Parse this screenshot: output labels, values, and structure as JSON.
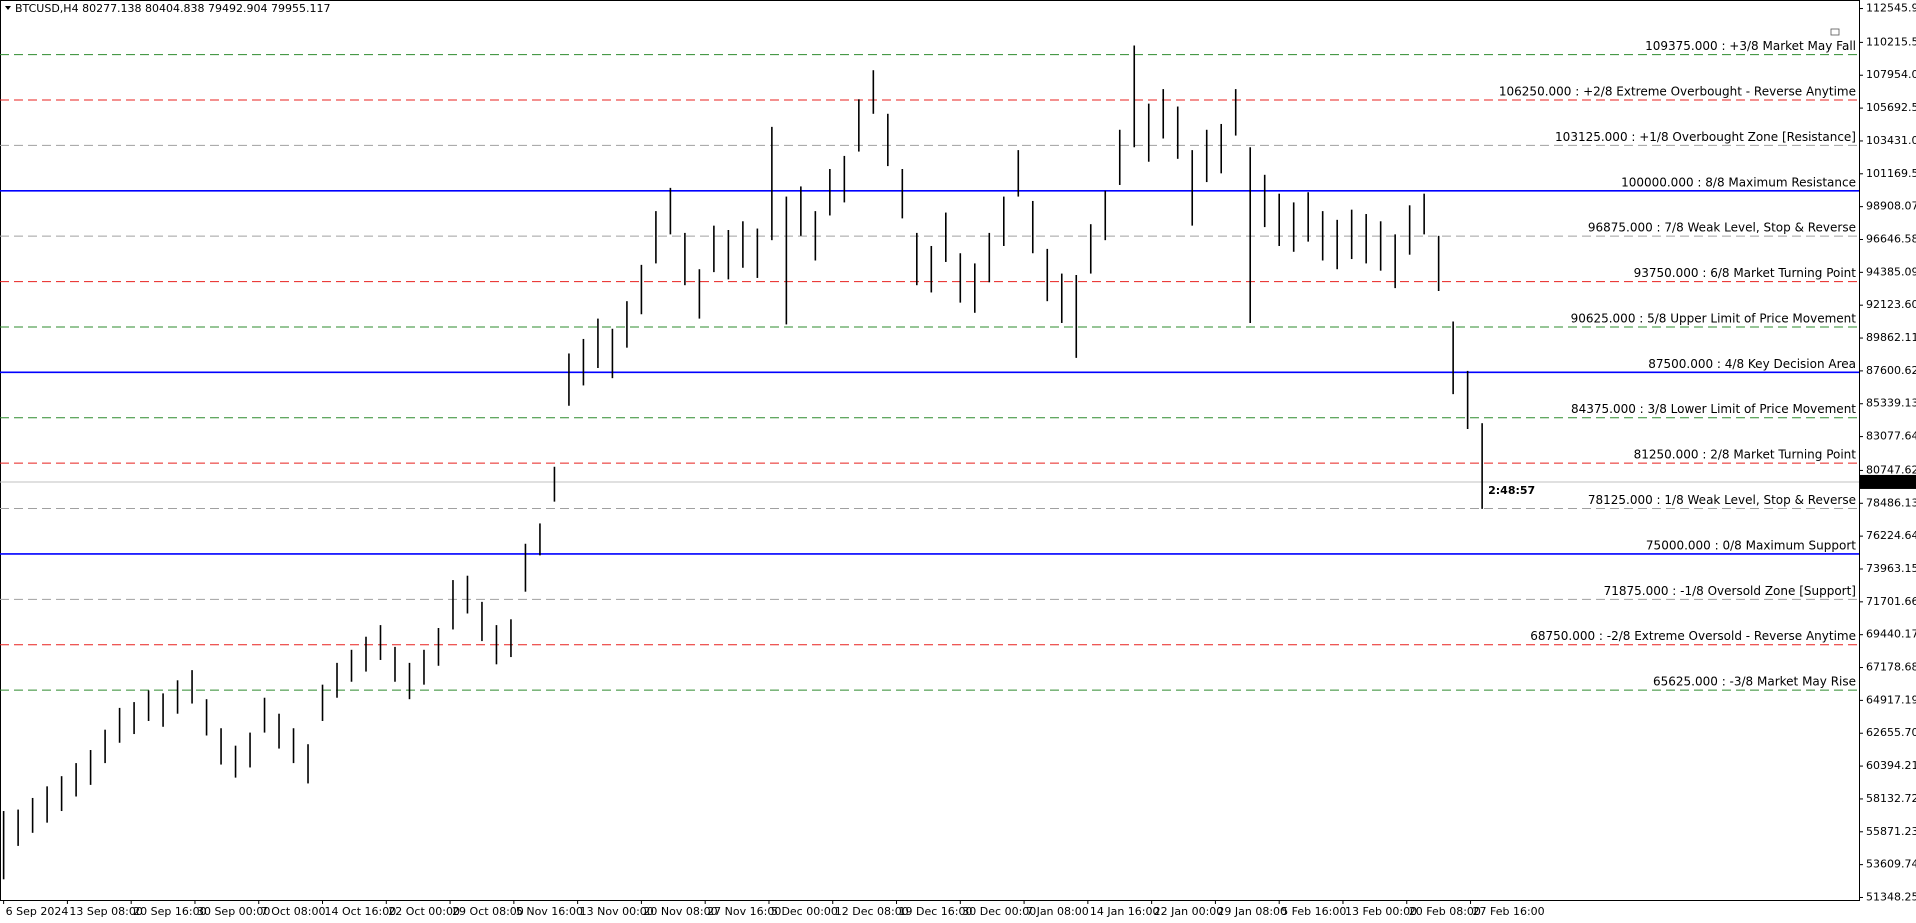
{
  "chart_data": {
    "type": "ohlc",
    "title": "BTCUSD,H4  80277.138 80404.838 79492.904 79955.117",
    "timer": "2:48:57",
    "current_price": 79955.117,
    "bar_color": "#000000",
    "x": [
      0,
      10,
      20,
      30,
      40,
      50,
      60,
      70,
      80,
      90,
      100,
      110,
      120,
      130,
      140,
      150,
      160,
      170,
      180,
      190,
      200,
      210,
      220,
      230,
      240,
      250,
      260,
      270,
      280,
      290,
      300,
      310,
      320,
      330,
      340,
      350,
      360,
      370,
      380,
      390,
      400,
      410,
      420,
      430,
      440,
      450,
      460,
      470,
      480,
      490,
      500,
      510,
      520,
      530,
      540,
      550,
      560,
      570,
      580,
      590,
      600,
      610,
      620,
      630,
      640,
      650,
      660,
      670,
      680,
      690,
      700,
      710,
      720,
      730,
      740,
      750,
      760,
      770,
      780,
      790,
      800,
      810,
      820,
      830,
      840,
      850,
      860,
      870,
      880,
      890,
      900,
      910,
      920,
      930,
      940,
      950,
      960,
      970,
      980,
      990,
      1000,
      1010,
      1020
    ],
    "high": [
      57300,
      57400,
      58200,
      59000,
      59700,
      60600,
      61500,
      62900,
      64400,
      64800,
      65600,
      65400,
      66300,
      67000,
      65000,
      63000,
      61800,
      62700,
      65100,
      64000,
      63000,
      61900,
      66000,
      67500,
      68400,
      69300,
      70100,
      68600,
      67500,
      68400,
      69900,
      73200,
      73500,
      71700,
      70100,
      70500,
      75700,
      77100,
      81000,
      88800,
      89800,
      91200,
      90500,
      92400,
      94900,
      98600,
      100200,
      97100,
      94600,
      97600,
      97300,
      97900,
      97400,
      104400,
      99600,
      100300,
      98600,
      101500,
      102400,
      106300,
      108300,
      105300,
      101500,
      97100,
      96200,
      98500,
      95700,
      95000,
      97100,
      99600,
      102800,
      99300,
      96000,
      94300,
      94200,
      97700,
      100000,
      104200,
      110000,
      106000,
      107000,
      105800,
      102800,
      104200,
      104600,
      107000,
      103000,
      101100,
      99800,
      99200,
      99900,
      98600,
      98000,
      98700,
      98400,
      97900,
      97000,
      99000,
      99800,
      96900,
      91000,
      87600,
      84000
    ],
    "low": [
      52600,
      54900,
      55800,
      56500,
      57300,
      58300,
      59100,
      60600,
      62000,
      62600,
      63500,
      63100,
      64000,
      64700,
      62500,
      60500,
      59600,
      60300,
      62700,
      61600,
      60600,
      59200,
      63500,
      65100,
      66200,
      66900,
      67700,
      66200,
      65000,
      66000,
      67300,
      69800,
      70900,
      69000,
      67400,
      67900,
      72400,
      74900,
      78600,
      85200,
      86600,
      87800,
      87100,
      89200,
      91500,
      95000,
      97000,
      93500,
      91200,
      94400,
      93900,
      94700,
      94000,
      96600,
      90800,
      96900,
      95200,
      98300,
      99200,
      102700,
      105300,
      101700,
      98100,
      93500,
      93000,
      95100,
      92300,
      91600,
      93700,
      96200,
      99600,
      95700,
      92400,
      90900,
      88500,
      94300,
      96600,
      100400,
      103000,
      102000,
      103600,
      102200,
      97600,
      100600,
      101200,
      103800,
      90900,
      97500,
      96200,
      95800,
      96500,
      95200,
      94600,
      95300,
      95000,
      94500,
      93300,
      95600,
      97000,
      93100,
      86000,
      83600,
      78100
    ],
    "xlim": [
      -2.5,
      1280
    ],
    "ylim": [
      51175,
      113134
    ],
    "xticks": [
      {
        "value": 0,
        "label": "6 Sep 2024"
      },
      {
        "value": 44,
        "label": "13 Sep 08:00"
      },
      {
        "value": 88,
        "label": "20 Sep 16:00"
      },
      {
        "value": 132,
        "label": "30 Sep 00:00"
      },
      {
        "value": 176,
        "label": "7 Oct 08:00"
      },
      {
        "value": 220,
        "label": "14 Oct 16:00"
      },
      {
        "value": 264,
        "label": "22 Oct 00:00"
      },
      {
        "value": 308,
        "label": "29 Oct 08:00"
      },
      {
        "value": 352,
        "label": "5 Nov 16:00"
      },
      {
        "value": 396,
        "label": "13 Nov 00:00"
      },
      {
        "value": 440,
        "label": "20 Nov 08:00"
      },
      {
        "value": 484,
        "label": "27 Nov 16:00"
      },
      {
        "value": 528,
        "label": "5 Dec 00:00"
      },
      {
        "value": 572,
        "label": "12 Dec 08:00"
      },
      {
        "value": 616,
        "label": "19 Dec 16:00"
      },
      {
        "value": 660,
        "label": "30 Dec 00:00"
      },
      {
        "value": 704,
        "label": "7 Jan 08:00"
      },
      {
        "value": 748,
        "label": "14 Jan 16:00"
      },
      {
        "value": 792,
        "label": "22 Jan 00:00"
      },
      {
        "value": 836,
        "label": "29 Jan 08:00"
      },
      {
        "value": 880,
        "label": "5 Feb 16:00"
      },
      {
        "value": 924,
        "label": "13 Feb 00:00"
      },
      {
        "value": 968,
        "label": "20 Feb 08:00"
      },
      {
        "value": 1012,
        "label": "27 Feb 16:00"
      }
    ],
    "yticks": [
      {
        "value": 112545.94,
        "label": "112545.940"
      },
      {
        "value": 110215.54,
        "label": "110215.540"
      },
      {
        "value": 107954.03,
        "label": "107954.030"
      },
      {
        "value": 105692.54,
        "label": "105692.540"
      },
      {
        "value": 103431.05,
        "label": "103431.050"
      },
      {
        "value": 101169.56,
        "label": "101169.560"
      },
      {
        "value": 98908.07,
        "label": "98908.070"
      },
      {
        "value": 96646.58,
        "label": "96646.580"
      },
      {
        "value": 94385.09,
        "label": "94385.090"
      },
      {
        "value": 92123.6,
        "label": "92123.600"
      },
      {
        "value": 89862.11,
        "label": "89862.110"
      },
      {
        "value": 87600.62,
        "label": "87600.620"
      },
      {
        "value": 85339.13,
        "label": "85339.130"
      },
      {
        "value": 83077.64,
        "label": "83077.640"
      },
      {
        "value": 80747.62,
        "label": "80747.620"
      },
      {
        "value": 78486.13,
        "label": "78486.130"
      },
      {
        "value": 76224.64,
        "label": "76224.640"
      },
      {
        "value": 73963.15,
        "label": "73963.150"
      },
      {
        "value": 71701.66,
        "label": "71701.660"
      },
      {
        "value": 69440.17,
        "label": "69440.170"
      },
      {
        "value": 67178.68,
        "label": "67178.680"
      },
      {
        "value": 64917.19,
        "label": "64917.190"
      },
      {
        "value": 62655.7,
        "label": "62655.700"
      },
      {
        "value": 60394.21,
        "label": "60394.210"
      },
      {
        "value": 58132.72,
        "label": "58132.720"
      },
      {
        "value": 55871.23,
        "label": "55871.230"
      },
      {
        "value": 53609.74,
        "label": "53609.740"
      },
      {
        "value": 51348.25,
        "label": "51348.250"
      }
    ],
    "levels": [
      {
        "value": 109375,
        "label": "109375.000 : +3/8 Market May Fall",
        "color": "#2e8b2e",
        "style": "dashed"
      },
      {
        "value": 106250,
        "label": "106250.000 : +2/8 Extreme Overbought - Reverse Anytime",
        "color": "#e8211f",
        "style": "dashed"
      },
      {
        "value": 103125,
        "label": "103125.000 : +1/8 Overbought Zone [Resistance]",
        "color": "#a0a0a0",
        "style": "dashed"
      },
      {
        "value": 100000,
        "label": "100000.000 : 8/8 Maximum Resistance",
        "color": "#0000ff",
        "style": "solid"
      },
      {
        "value": 96875,
        "label": "96875.000 : 7/8 Weak Level, Stop & Reverse",
        "color": "#a0a0a0",
        "style": "dashed"
      },
      {
        "value": 93750,
        "label": "93750.000 : 6/8 Market Turning Point",
        "color": "#e8211f",
        "style": "dashed"
      },
      {
        "value": 90625,
        "label": "90625.000 : 5/8 Upper Limit of Price Movement",
        "color": "#2e8b2e",
        "style": "dashed"
      },
      {
        "value": 87500,
        "label": "87500.000 : 4/8 Key Decision Area",
        "color": "#0000ff",
        "style": "solid"
      },
      {
        "value": 84375,
        "label": "84375.000 : 3/8 Lower Limit of Price Movement",
        "color": "#2e8b2e",
        "style": "dashed"
      },
      {
        "value": 81250,
        "label": "81250.000 : 2/8 Market Turning Point",
        "color": "#e8211f",
        "style": "dashed"
      },
      {
        "value": 78125,
        "label": "78125.000 : 1/8 Weak Level, Stop & Reverse",
        "color": "#a0a0a0",
        "style": "dashed"
      },
      {
        "value": 75000,
        "label": "75000.000 : 0/8 Maximum Support",
        "color": "#0000ff",
        "style": "solid"
      },
      {
        "value": 71875,
        "label": "71875.000 : -1/8 Oversold Zone [Support]",
        "color": "#a0a0a0",
        "style": "dashed"
      },
      {
        "value": 68750,
        "label": "68750.000 : -2/8 Extreme Oversold - Reverse Anytime",
        "color": "#e8211f",
        "style": "dashed"
      },
      {
        "value": 65625,
        "label": "65625.000 : -3/8 Market May Rise",
        "color": "#2e8b2e",
        "style": "dashed"
      }
    ]
  }
}
